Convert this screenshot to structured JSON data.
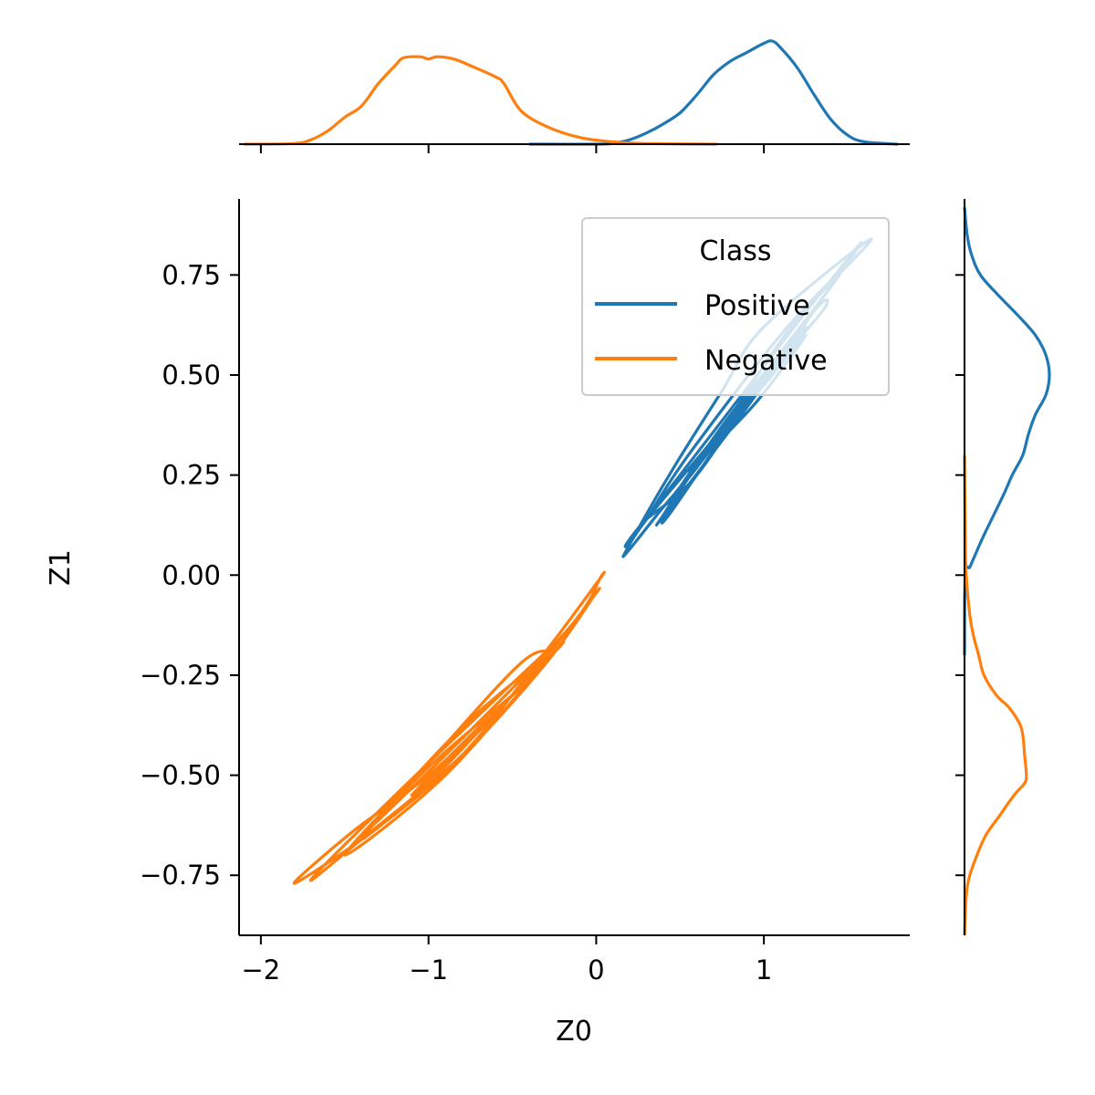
{
  "chart_data": {
    "type": "line",
    "subtype": "jointplot-kde",
    "xlabel": "Z0",
    "ylabel": "Z1",
    "xlim": [
      -2.13,
      1.87
    ],
    "ylim": [
      -0.9,
      0.94
    ],
    "x_ticks": [
      -2,
      -1,
      0,
      1
    ],
    "x_tick_labels": [
      "−2",
      "−1",
      "0",
      "1"
    ],
    "y_ticks": [
      -0.75,
      -0.5,
      -0.25,
      0.0,
      0.25,
      0.5,
      0.75
    ],
    "y_tick_labels": [
      "−0.75",
      "−0.50",
      "−0.25",
      "0.00",
      "0.25",
      "0.50",
      "0.75"
    ],
    "grid": false,
    "legend": {
      "title": "Class",
      "placement": "top-right",
      "entries": [
        "Positive",
        "Negative"
      ]
    },
    "series": [
      {
        "name": "Positive",
        "color": "#1f77b4",
        "joint_contours": [
          [
            [
              0.19,
              0.07
            ],
            [
              0.45,
              0.26
            ],
            [
              0.75,
              0.46
            ],
            [
              1.0,
              0.62
            ],
            [
              1.64,
              0.84
            ],
            [
              1.2,
              0.64
            ],
            [
              0.9,
              0.46
            ],
            [
              0.62,
              0.28
            ],
            [
              0.4,
              0.17
            ],
            [
              0.19,
              0.06
            ]
          ],
          [
            [
              0.2,
              0.09
            ],
            [
              0.5,
              0.25
            ],
            [
              1.2,
              0.63
            ],
            [
              1.58,
              0.83
            ],
            [
              1.1,
              0.55
            ],
            [
              0.7,
              0.34
            ],
            [
              0.32,
              0.15
            ],
            [
              0.2,
              0.08
            ]
          ],
          [
            [
              0.3,
              0.14
            ],
            [
              0.55,
              0.3
            ],
            [
              1.1,
              0.6
            ],
            [
              1.45,
              0.75
            ],
            [
              1.0,
              0.5
            ],
            [
              0.6,
              0.25
            ],
            [
              0.3,
              0.14
            ]
          ],
          [
            [
              0.45,
              0.17
            ],
            [
              0.9,
              0.42
            ],
            [
              1.3,
              0.66
            ],
            [
              1.35,
              0.66
            ],
            [
              0.95,
              0.46
            ],
            [
              0.45,
              0.16
            ]
          ],
          [
            [
              0.4,
              0.15
            ],
            [
              0.7,
              0.34
            ],
            [
              1.25,
              0.62
            ],
            [
              0.75,
              0.36
            ],
            [
              0.4,
              0.15
            ]
          ],
          [
            [
              0.5,
              0.22
            ],
            [
              0.8,
              0.4
            ],
            [
              1.2,
              0.6
            ],
            [
              0.85,
              0.4
            ],
            [
              0.5,
              0.22
            ]
          ],
          [
            [
              0.6,
              0.28
            ],
            [
              0.95,
              0.45
            ],
            [
              1.25,
              0.6
            ],
            [
              0.95,
              0.43
            ],
            [
              0.6,
              0.28
            ]
          ]
        ],
        "x_marginal": [
          [
            -0.4,
            0.0
          ],
          [
            0.0,
            0.0
          ],
          [
            0.1,
            0.004
          ],
          [
            0.2,
            0.02
          ],
          [
            0.3,
            0.05
          ],
          [
            0.4,
            0.09
          ],
          [
            0.5,
            0.14
          ],
          [
            0.6,
            0.22
          ],
          [
            0.7,
            0.31
          ],
          [
            0.8,
            0.37
          ],
          [
            0.9,
            0.41
          ],
          [
            1.0,
            0.45
          ],
          [
            1.05,
            0.46
          ],
          [
            1.1,
            0.43
          ],
          [
            1.2,
            0.34
          ],
          [
            1.3,
            0.22
          ],
          [
            1.4,
            0.11
          ],
          [
            1.5,
            0.04
          ],
          [
            1.6,
            0.01
          ],
          [
            1.8,
            0.0
          ]
        ],
        "y_marginal": [
          [
            -0.2,
            0.0
          ],
          [
            0.0,
            0.004
          ],
          [
            0.02,
            0.03
          ],
          [
            0.05,
            0.06
          ],
          [
            0.1,
            0.11
          ],
          [
            0.2,
            0.22
          ],
          [
            0.25,
            0.27
          ],
          [
            0.3,
            0.33
          ],
          [
            0.35,
            0.36
          ],
          [
            0.4,
            0.4
          ],
          [
            0.45,
            0.46
          ],
          [
            0.5,
            0.48
          ],
          [
            0.55,
            0.46
          ],
          [
            0.6,
            0.4
          ],
          [
            0.65,
            0.3
          ],
          [
            0.7,
            0.19
          ],
          [
            0.75,
            0.09
          ],
          [
            0.8,
            0.04
          ],
          [
            0.85,
            0.015
          ],
          [
            0.92,
            0.0
          ]
        ]
      },
      {
        "name": "Negative",
        "color": "#ff7f0e",
        "joint_contours": [
          [
            [
              0.02,
              -0.01
            ],
            [
              -0.3,
              -0.19
            ],
            [
              -0.8,
              -0.45
            ],
            [
              -1.3,
              -0.63
            ],
            [
              -1.8,
              -0.77
            ],
            [
              -1.45,
              -0.64
            ],
            [
              -1.0,
              -0.5
            ],
            [
              -0.5,
              -0.3
            ],
            [
              -0.1,
              -0.1
            ],
            [
              0.02,
              -0.01
            ]
          ],
          [
            [
              -0.01,
              -0.05
            ],
            [
              -0.3,
              -0.22
            ],
            [
              -0.8,
              -0.45
            ],
            [
              -1.4,
              -0.66
            ],
            [
              -1.7,
              -0.76
            ],
            [
              -1.2,
              -0.55
            ],
            [
              -0.6,
              -0.31
            ],
            [
              -0.2,
              -0.15
            ],
            [
              -0.01,
              -0.05
            ]
          ],
          [
            [
              -0.25,
              -0.19
            ],
            [
              -0.9,
              -0.5
            ],
            [
              -1.5,
              -0.7
            ],
            [
              -1.0,
              -0.47
            ],
            [
              -0.45,
              -0.22
            ],
            [
              -0.25,
              -0.19
            ]
          ],
          [
            [
              -0.35,
              -0.22
            ],
            [
              -0.9,
              -0.45
            ],
            [
              -1.35,
              -0.63
            ],
            [
              -0.8,
              -0.38
            ],
            [
              -0.35,
              -0.22
            ]
          ],
          [
            [
              -0.5,
              -0.3
            ],
            [
              -1.0,
              -0.52
            ],
            [
              -1.4,
              -0.66
            ],
            [
              -1.0,
              -0.48
            ],
            [
              -0.5,
              -0.3
            ]
          ],
          [
            [
              -0.6,
              -0.35
            ],
            [
              -1.1,
              -0.55
            ],
            [
              -0.7,
              -0.38
            ],
            [
              -0.6,
              -0.35
            ]
          ]
        ],
        "x_marginal": [
          [
            -2.1,
            0.0
          ],
          [
            -1.8,
            0.003
          ],
          [
            -1.7,
            0.02
          ],
          [
            -1.6,
            0.06
          ],
          [
            -1.5,
            0.12
          ],
          [
            -1.4,
            0.17
          ],
          [
            -1.3,
            0.27
          ],
          [
            -1.2,
            0.35
          ],
          [
            -1.15,
            0.385
          ],
          [
            -1.05,
            0.39
          ],
          [
            -1.0,
            0.38
          ],
          [
            -0.95,
            0.39
          ],
          [
            -0.85,
            0.38
          ],
          [
            -0.75,
            0.35
          ],
          [
            -0.6,
            0.3
          ],
          [
            -0.55,
            0.27
          ],
          [
            -0.45,
            0.15
          ],
          [
            -0.3,
            0.08
          ],
          [
            -0.1,
            0.03
          ],
          [
            0.1,
            0.01
          ],
          [
            0.3,
            0.003
          ],
          [
            0.72,
            0.0
          ]
        ],
        "y_marginal": [
          [
            -0.9,
            0.0
          ],
          [
            -0.8,
            0.01
          ],
          [
            -0.75,
            0.03
          ],
          [
            -0.7,
            0.07
          ],
          [
            -0.65,
            0.12
          ],
          [
            -0.6,
            0.2
          ],
          [
            -0.55,
            0.28
          ],
          [
            -0.52,
            0.34
          ],
          [
            -0.5,
            0.35
          ],
          [
            -0.45,
            0.34
          ],
          [
            -0.4,
            0.33
          ],
          [
            -0.37,
            0.31
          ],
          [
            -0.33,
            0.25
          ],
          [
            -0.3,
            0.18
          ],
          [
            -0.25,
            0.11
          ],
          [
            -0.2,
            0.08
          ],
          [
            -0.15,
            0.05
          ],
          [
            -0.1,
            0.03
          ],
          [
            0.0,
            0.01
          ],
          [
            0.1,
            0.004
          ],
          [
            0.3,
            0.0
          ]
        ]
      }
    ]
  }
}
